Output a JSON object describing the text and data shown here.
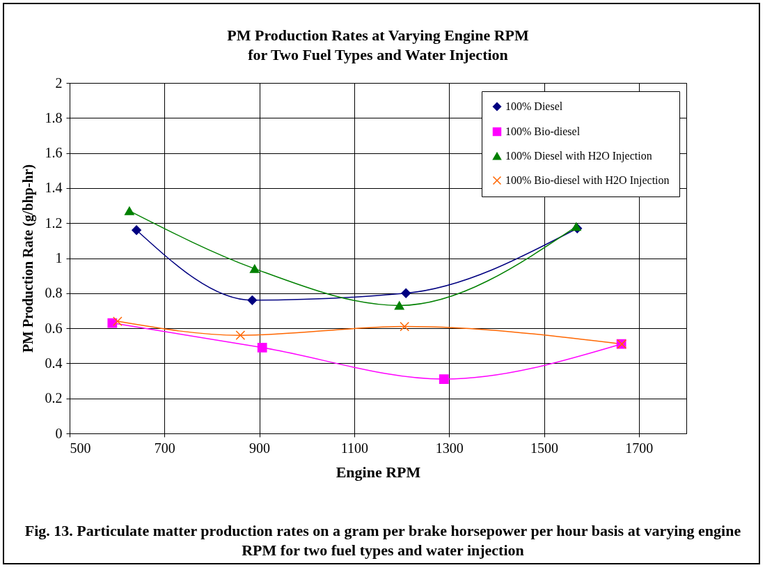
{
  "chart_data": {
    "type": "line",
    "title": "PM Production Rates at Varying Engine RPM\nfor Two Fuel Types and Water Injection",
    "xlabel": "Engine RPM",
    "ylabel": "PM Production Rate (g/bhp-hr)",
    "xlim": [
      500,
      1800
    ],
    "xticks": [
      500,
      700,
      900,
      1100,
      1300,
      1500,
      1700
    ],
    "ylim": [
      0,
      2
    ],
    "yticks": [
      0,
      0.2,
      0.4,
      0.6,
      0.8,
      1,
      1.2,
      1.4,
      1.6,
      1.8,
      2
    ],
    "grid": true,
    "legend": "top right",
    "series": [
      {
        "name": "100% Diesel",
        "color": "#000080",
        "marker": "diamond",
        "x": [
          641,
          885,
          1209,
          1570
        ],
        "values": [
          1.16,
          0.76,
          0.8,
          1.17
        ]
      },
      {
        "name": "100% Bio-diesel",
        "color": "#ff00ff",
        "marker": "square",
        "x": [
          590,
          906,
          1289,
          1663
        ],
        "values": [
          0.63,
          0.49,
          0.31,
          0.51
        ]
      },
      {
        "name": "100% Diesel with H2O Injection",
        "color": "#008000",
        "marker": "triangle",
        "x": [
          626,
          890,
          1195,
          1568
        ],
        "values": [
          1.27,
          0.94,
          0.73,
          1.18
        ]
      },
      {
        "name": "100% Bio-diesel with H2O Injection",
        "color": "#ff6600",
        "marker": "cross",
        "x": [
          601,
          860,
          1206,
          1664
        ],
        "values": [
          0.64,
          0.56,
          0.61,
          0.51
        ]
      }
    ],
    "annotations": [
      "Fig. 13. Particulate matter production rates on a gram per brake horsepower per hour basis at varying engine RPM for two fuel types and water injection"
    ]
  }
}
